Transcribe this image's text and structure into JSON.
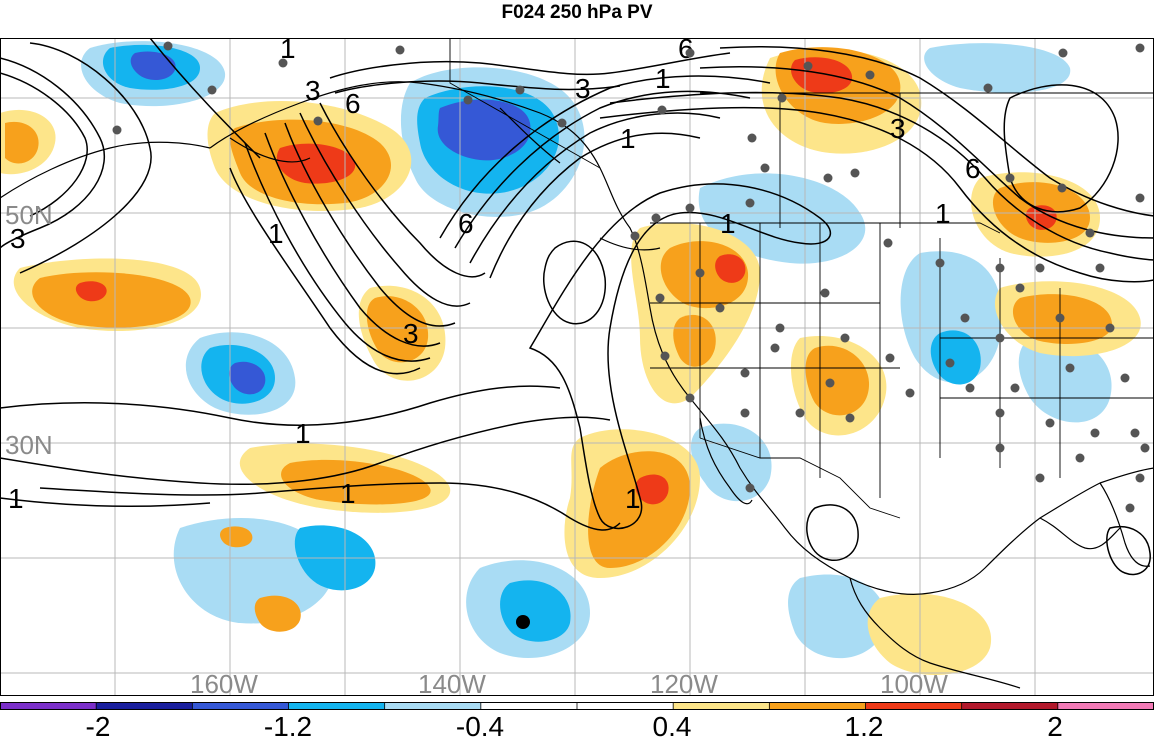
{
  "title": "F024 250 hPa PV",
  "map": {
    "region": "North Pacific / North America",
    "lat_labels": [
      "50N",
      "30N"
    ],
    "lon_labels": [
      "160W",
      "140W",
      "120W",
      "100W"
    ],
    "contour_labels": [
      "1",
      "3",
      "6"
    ],
    "colors": {
      "grid": "#b8b8b8",
      "coast": "#000000",
      "station_dot": "#555555",
      "label_gray": "#8a8a8a"
    }
  },
  "colorbar": {
    "tick_labels": [
      "-2",
      "-1.2",
      "-0.4",
      "0.4",
      "1.2",
      "2"
    ],
    "colors": [
      "#7b2fc9",
      "#1a1f9e",
      "#3558d6",
      "#14b4ef",
      "#a9dcf4",
      "#ffffff",
      "#ffffff",
      "#fde58a",
      "#f7a11c",
      "#ee3a18",
      "#b2182b",
      "#f27ab6"
    ]
  }
}
